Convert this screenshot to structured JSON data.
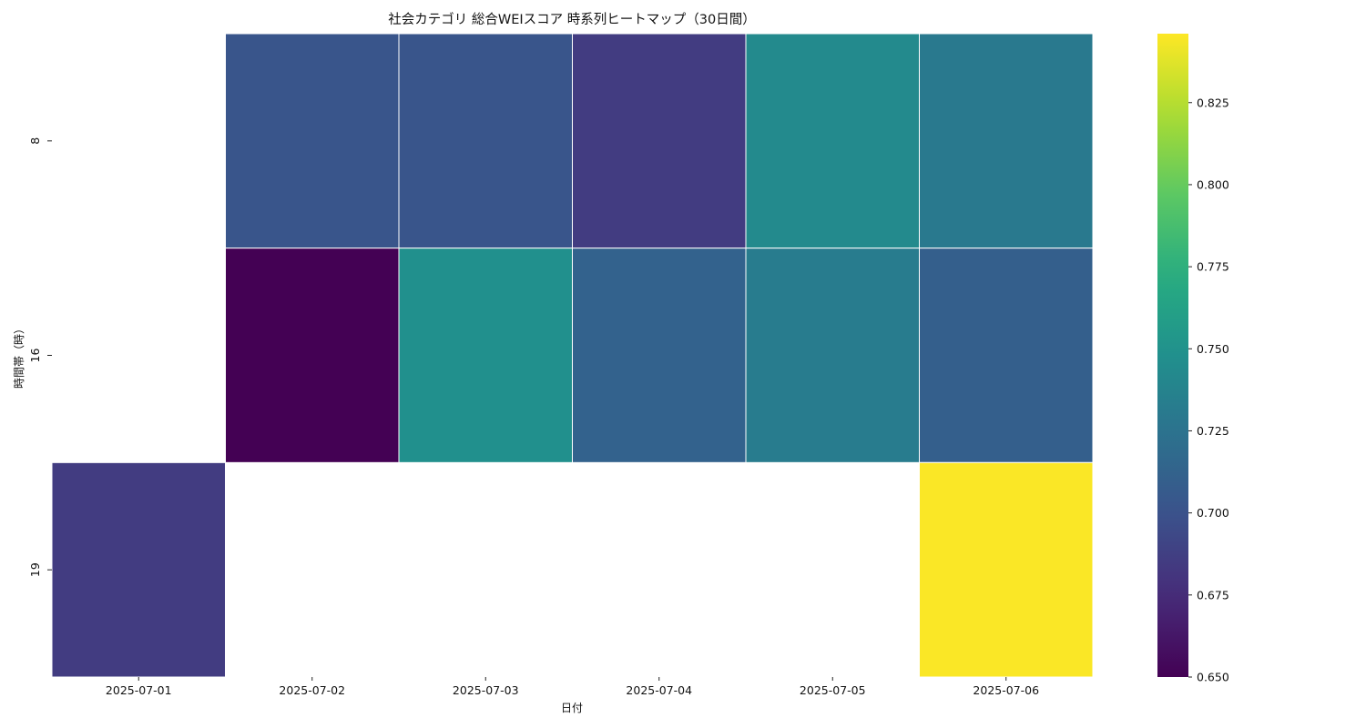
{
  "chart_data": {
    "type": "heatmap",
    "title": "社会カテゴリ 総合WEIスコア 時系列ヒートマップ（30日間）",
    "xlabel": "日付",
    "ylabel": "時間帯（時）",
    "x": [
      "2025-07-01",
      "2025-07-02",
      "2025-07-03",
      "2025-07-04",
      "2025-07-05",
      "2025-07-06"
    ],
    "y": [
      "8",
      "16",
      "19"
    ],
    "values": [
      [
        null,
        0.702,
        0.702,
        0.685,
        0.743,
        0.73
      ],
      [
        null,
        0.65,
        0.748,
        0.712,
        0.732,
        0.71
      ],
      [
        0.685,
        null,
        null,
        null,
        null,
        0.845
      ]
    ],
    "colorbar": {
      "colormap": "viridis",
      "range": [
        0.65,
        0.846
      ],
      "ticks": [
        "0.650",
        "0.675",
        "0.700",
        "0.725",
        "0.750",
        "0.775",
        "0.800",
        "0.825"
      ]
    },
    "missing_color": "#ffffff",
    "cell_border_color": "#ffffff"
  }
}
